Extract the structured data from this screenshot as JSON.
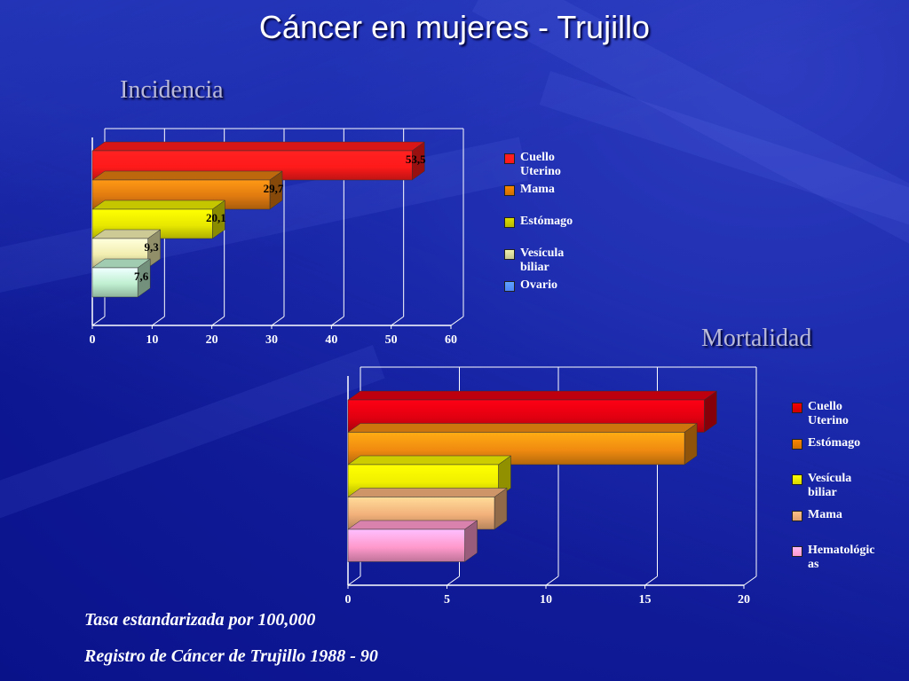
{
  "slide": {
    "title": "Cáncer en mujeres - Trujillo",
    "footnotes": [
      "Tasa estandarizada por 100,000",
      "Registro de Cáncer de Trujillo 1988 - 90"
    ]
  },
  "chart_data": [
    {
      "type": "bar",
      "orientation": "horizontal",
      "title": "Incidencia",
      "categories": [
        "Cuello Uterino",
        "Mama",
        "Estómago",
        "Vesícula biliar",
        "Ovario"
      ],
      "values": [
        53.5,
        29.7,
        20.1,
        9.3,
        7.6
      ],
      "value_labels": [
        "53,5",
        "29,7",
        "20,1",
        "9,3",
        "7,6"
      ],
      "bar_colors": [
        "#ff1a1a",
        "#e07a10",
        "#e8e800",
        "#f2eeb0",
        "#bff0d0"
      ],
      "legend_colors": [
        "#ff1a1a",
        "#d07000",
        "#b8b800",
        "#c8c890",
        "#4f86f7"
      ],
      "legend_labels": [
        "Cuello\nUterino",
        "Mama",
        "Estómago",
        "Vesícula\nbiliar",
        "Ovario"
      ],
      "xlim": [
        0,
        60
      ],
      "xticks": [
        0,
        10,
        20,
        30,
        40,
        50,
        60
      ],
      "grid": true,
      "legend_position": "right"
    },
    {
      "type": "bar",
      "orientation": "horizontal",
      "title": "Mortalidad",
      "categories": [
        "Cuello Uterino",
        "Estómago",
        "Vesícula biliar",
        "Mama",
        "Hematológicas"
      ],
      "values": [
        18,
        17,
        7.6,
        7.4,
        5.9
      ],
      "bar_colors": [
        "#e00010",
        "#f08a10",
        "#f0f000",
        "#f2b07a",
        "#ff99cc"
      ],
      "legend_colors": [
        "#cc0000",
        "#d07000",
        "#d8d800",
        "#e0a070",
        "#ff99cc"
      ],
      "legend_labels": [
        "Cuello\nUterino",
        "Estómago",
        "Vesícula\nbiliar",
        "Mama",
        "Hematológic\nas"
      ],
      "xlim": [
        0,
        20
      ],
      "xticks": [
        0,
        5,
        10,
        15,
        20
      ],
      "grid": true,
      "legend_position": "right"
    }
  ]
}
